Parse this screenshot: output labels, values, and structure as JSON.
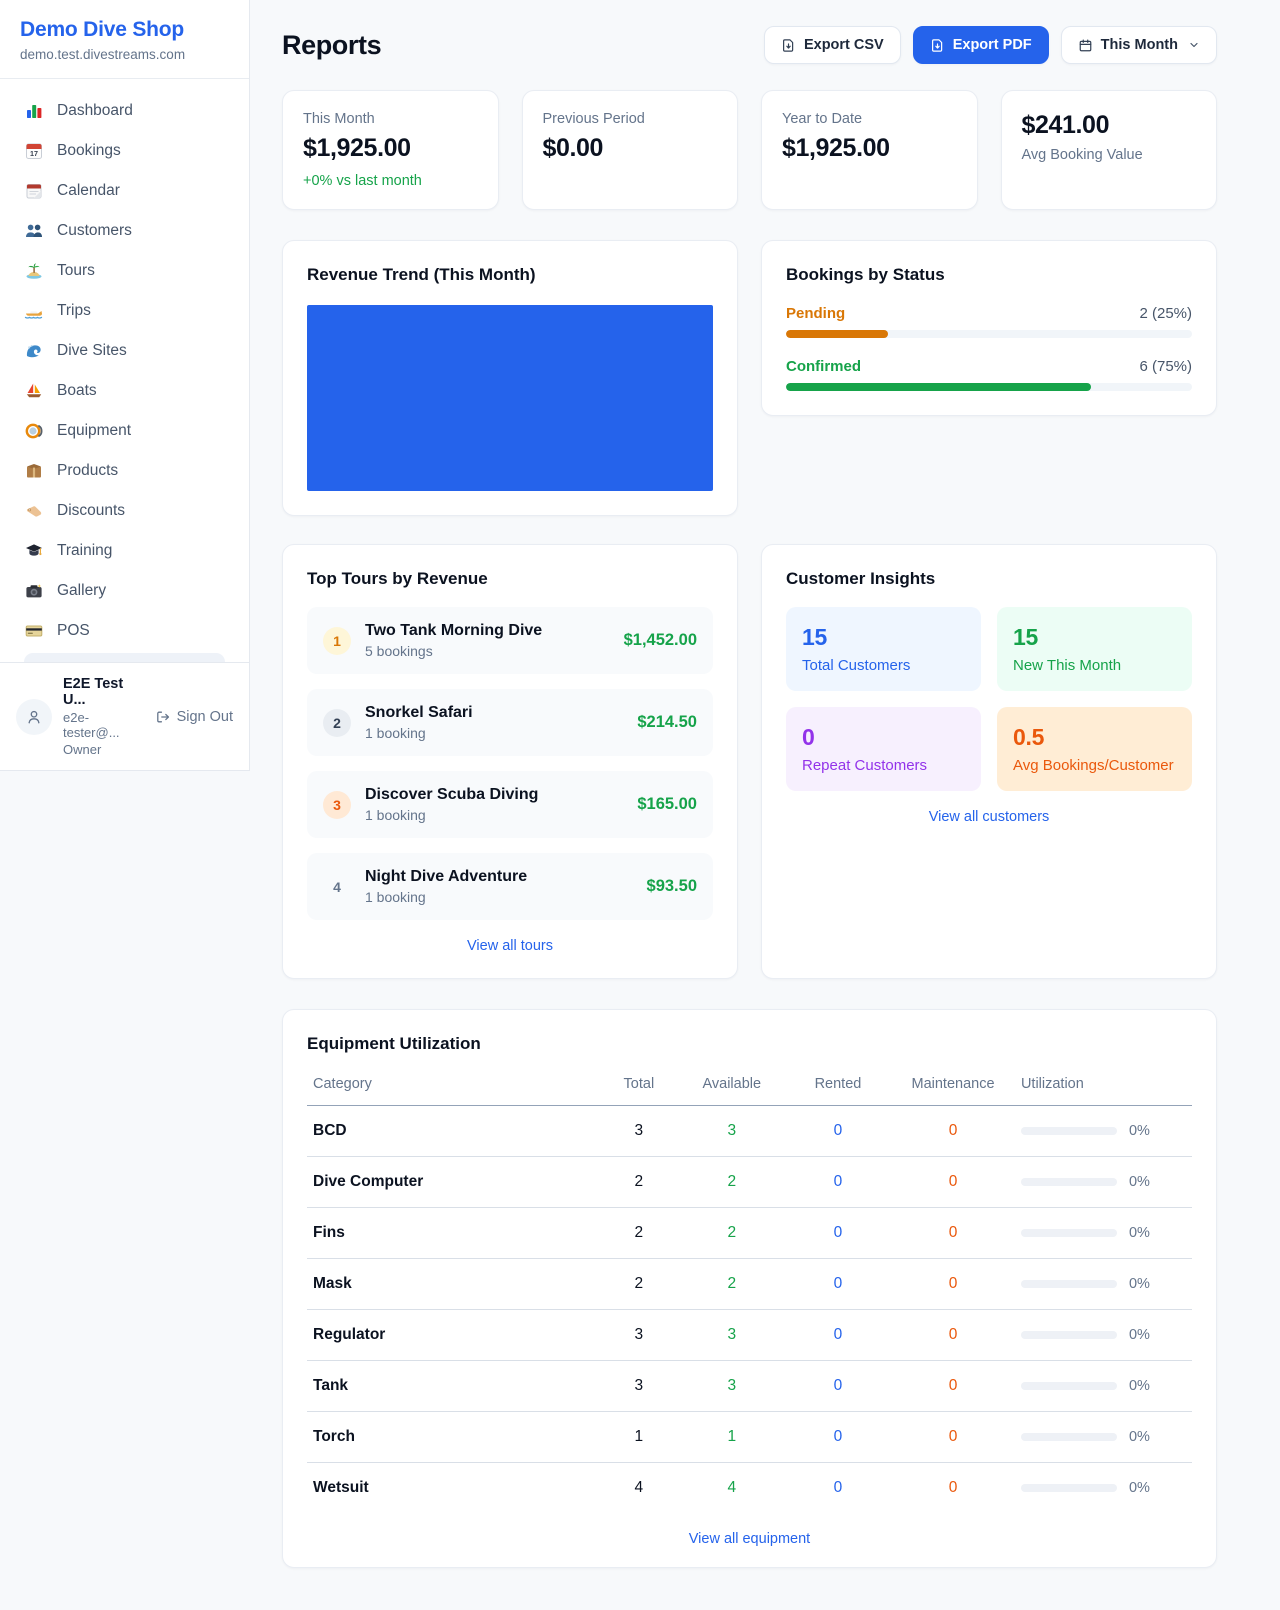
{
  "colors": {
    "accent_blue": "#2563eb",
    "green": "#16a34a",
    "pending_orange": "#d97706",
    "maintenance_orange": "#ea580c",
    "purple": "#9333ea",
    "page_bg": "#f7f9fb"
  },
  "sidebar": {
    "brand": {
      "name": "Demo Dive Shop",
      "domain": "demo.test.divestreams.com"
    },
    "nav": [
      {
        "label": "Dashboard",
        "icon": "dashboard-icon"
      },
      {
        "label": "Bookings",
        "icon": "bookings-calendar-icon"
      },
      {
        "label": "Calendar",
        "icon": "calendar-icon"
      },
      {
        "label": "Customers",
        "icon": "customers-icon"
      },
      {
        "label": "Tours",
        "icon": "island-icon"
      },
      {
        "label": "Trips",
        "icon": "speedboat-icon"
      },
      {
        "label": "Dive Sites",
        "icon": "wave-icon"
      },
      {
        "label": "Boats",
        "icon": "sailboat-icon"
      },
      {
        "label": "Equipment",
        "icon": "dive-mask-icon"
      },
      {
        "label": "Products",
        "icon": "package-icon"
      },
      {
        "label": "Discounts",
        "icon": "tag-icon"
      },
      {
        "label": "Training",
        "icon": "graduation-cap-icon"
      },
      {
        "label": "Gallery",
        "icon": "camera-icon"
      },
      {
        "label": "POS",
        "icon": "credit-card-icon"
      }
    ],
    "user": {
      "name": "E2E Test U...",
      "email": "e2e-tester@...",
      "role": "Owner",
      "sign_out": "Sign Out"
    }
  },
  "header": {
    "title": "Reports",
    "export_csv": "Export CSV",
    "export_pdf": "Export PDF",
    "period": "This Month"
  },
  "stats": {
    "cards": [
      {
        "label": "This Month",
        "value": "$1,925.00",
        "delta": "+0% vs last month"
      },
      {
        "label": "Previous Period",
        "value": "$0.00"
      },
      {
        "label": "Year to Date",
        "value": "$1,925.00"
      },
      {
        "label": "Avg Booking Value",
        "value": "$241.00"
      }
    ]
  },
  "revenue_trend": {
    "title": "Revenue Trend (This Month)",
    "chart": {
      "type": "area",
      "fill_color": "#2563eb",
      "note": "solid filled plot area, no visible axes or labels"
    }
  },
  "bookings_by_status": {
    "title": "Bookings by Status",
    "items": [
      {
        "label": "Pending",
        "value_text": "2 (25%)",
        "pct": 25,
        "color": "#d97706"
      },
      {
        "label": "Confirmed",
        "value_text": "6 (75%)",
        "pct": 75,
        "color": "#16a34a"
      }
    ]
  },
  "top_tours": {
    "title": "Top Tours by Revenue",
    "items": [
      {
        "rank": "1",
        "name": "Two Tank Morning Dive",
        "bookings": "5 bookings",
        "revenue": "$1,452.00"
      },
      {
        "rank": "2",
        "name": "Snorkel Safari",
        "bookings": "1 booking",
        "revenue": "$214.50"
      },
      {
        "rank": "3",
        "name": "Discover Scuba Diving",
        "bookings": "1 booking",
        "revenue": "$165.00"
      },
      {
        "rank": "4",
        "name": "Night Dive Adventure",
        "bookings": "1 booking",
        "revenue": "$93.50"
      }
    ],
    "view_all": "View all tours"
  },
  "customer_insights": {
    "title": "Customer Insights",
    "tiles": [
      {
        "value": "15",
        "label": "Total Customers",
        "theme": "blue"
      },
      {
        "value": "15",
        "label": "New This Month",
        "theme": "green"
      },
      {
        "value": "0",
        "label": "Repeat Customers",
        "theme": "purple"
      },
      {
        "value": "0.5",
        "label": "Avg Bookings/Customer",
        "theme": "orange"
      }
    ],
    "view_all": "View all customers"
  },
  "equipment": {
    "title": "Equipment Utilization",
    "columns": [
      "Category",
      "Total",
      "Available",
      "Rented",
      "Maintenance",
      "Utilization"
    ],
    "rows": [
      {
        "category": "BCD",
        "total": "3",
        "available": "3",
        "rented": "0",
        "maintenance": "0",
        "utilization": "0%",
        "utilization_pct": 0
      },
      {
        "category": "Dive Computer",
        "total": "2",
        "available": "2",
        "rented": "0",
        "maintenance": "0",
        "utilization": "0%",
        "utilization_pct": 0
      },
      {
        "category": "Fins",
        "total": "2",
        "available": "2",
        "rented": "0",
        "maintenance": "0",
        "utilization": "0%",
        "utilization_pct": 0
      },
      {
        "category": "Mask",
        "total": "2",
        "available": "2",
        "rented": "0",
        "maintenance": "0",
        "utilization": "0%",
        "utilization_pct": 0
      },
      {
        "category": "Regulator",
        "total": "3",
        "available": "3",
        "rented": "0",
        "maintenance": "0",
        "utilization": "0%",
        "utilization_pct": 0
      },
      {
        "category": "Tank",
        "total": "3",
        "available": "3",
        "rented": "0",
        "maintenance": "0",
        "utilization": "0%",
        "utilization_pct": 0
      },
      {
        "category": "Torch",
        "total": "1",
        "available": "1",
        "rented": "0",
        "maintenance": "0",
        "utilization": "0%",
        "utilization_pct": 0
      },
      {
        "category": "Wetsuit",
        "total": "4",
        "available": "4",
        "rented": "0",
        "maintenance": "0",
        "utilization": "0%",
        "utilization_pct": 0
      }
    ],
    "view_all": "View all equipment"
  }
}
